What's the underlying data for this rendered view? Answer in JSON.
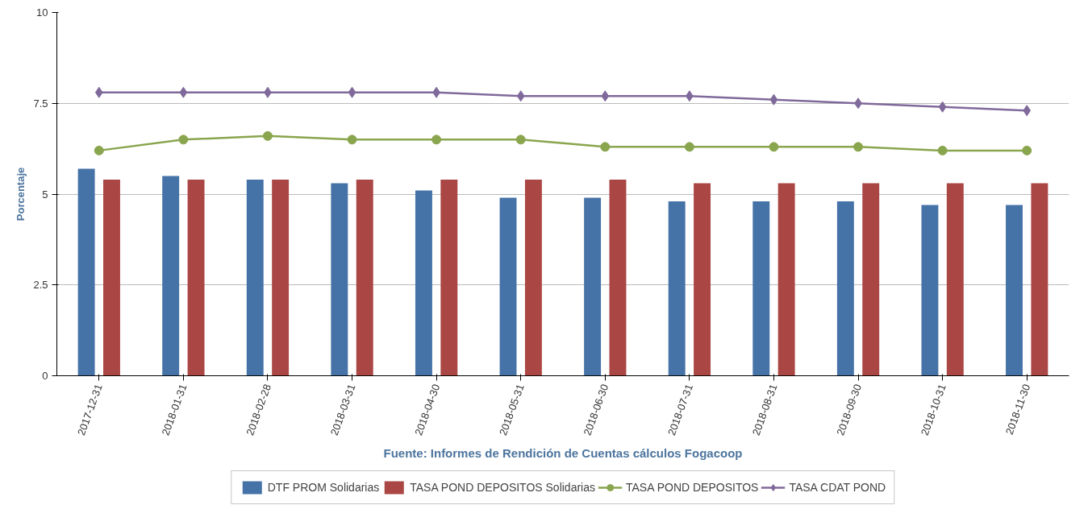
{
  "chart_data": {
    "type": "bar",
    "ylabel": "Porcentaje",
    "annotations": [
      "Fuente: Informes de Rendición de Cuentas cálculos Fogacoop"
    ],
    "categories": [
      "2017-12-31",
      "2018-01-31",
      "2018-02-28",
      "2018-03-31",
      "2018-04-30",
      "2018-05-31",
      "2018-06-30",
      "2018-07-31",
      "2018-08-31",
      "2018-09-30",
      "2018-10-31",
      "2018-11-30"
    ],
    "series": [
      {
        "name": "DTF PROM Solidarias",
        "color": "#4572a7",
        "values": [
          5.7,
          5.5,
          5.4,
          5.3,
          5.1,
          4.9,
          4.9,
          4.8,
          4.8,
          4.8,
          4.7,
          4.7
        ]
      },
      {
        "name": "TASA POND DEPOSITOS Solidarias",
        "color": "#aa4643",
        "values": [
          5.4,
          5.4,
          5.4,
          5.4,
          5.4,
          5.4,
          5.4,
          5.3,
          5.3,
          5.3,
          5.3,
          5.3
        ]
      },
      {
        "name": "TASA POND DEPOSITOS",
        "type": "line",
        "marker": "circle",
        "color": "#89a54e",
        "values": [
          6.2,
          6.5,
          6.6,
          6.5,
          6.5,
          6.5,
          6.3,
          6.3,
          6.3,
          6.3,
          6.2,
          6.2
        ]
      },
      {
        "name": "TASA CDAT POND",
        "type": "line",
        "marker": "diamond",
        "color": "#80699b",
        "values": [
          7.8,
          7.8,
          7.8,
          7.8,
          7.8,
          7.7,
          7.7,
          7.7,
          7.6,
          7.5,
          7.4,
          7.3
        ]
      }
    ],
    "ylim": [
      0,
      10
    ],
    "yticks": [
      0,
      2.5,
      5,
      7.5,
      10
    ],
    "grid": "y",
    "legend": "bottom"
  }
}
